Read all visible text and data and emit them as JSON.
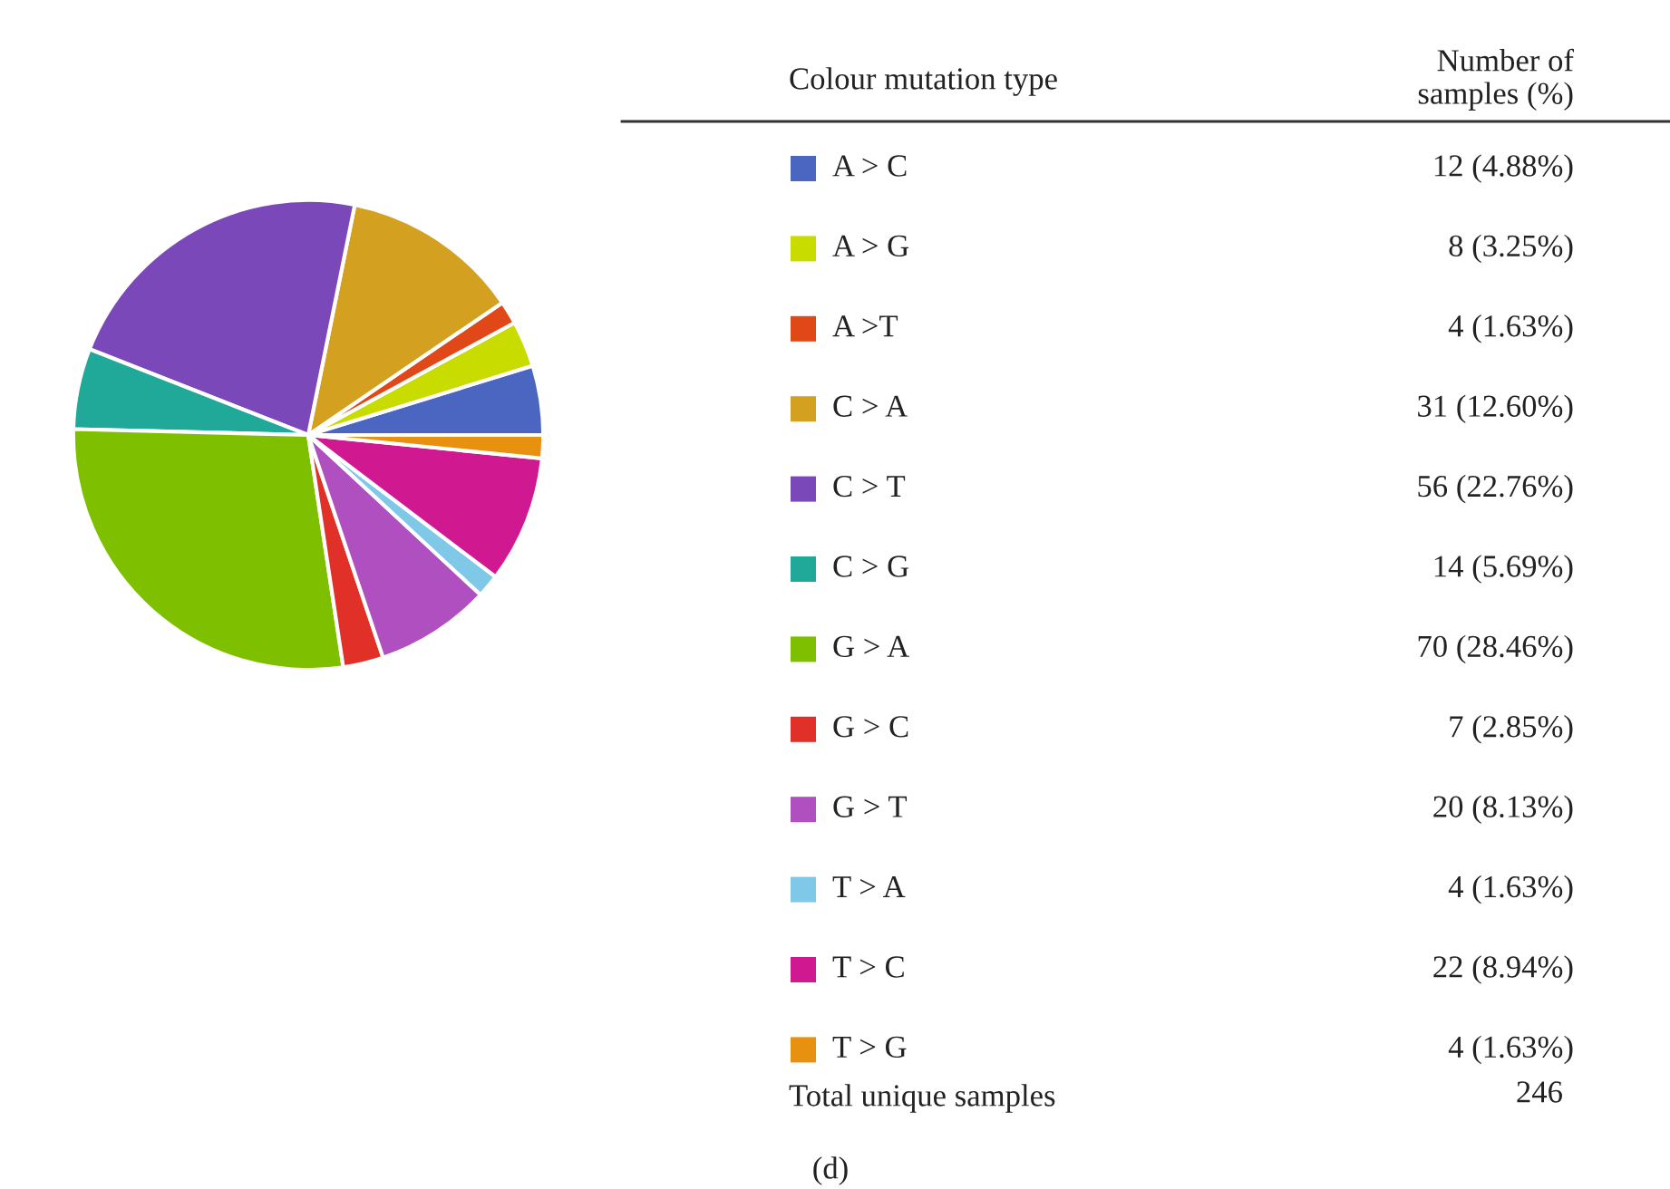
{
  "chart_data": {
    "type": "pie",
    "categories": [
      "A > C",
      "A > G",
      "A >T",
      "C > A",
      "C > T",
      "C > G",
      "G > A",
      "G > C",
      "G > T",
      "T > A",
      "T > C",
      "T > G"
    ],
    "values": [
      12,
      8,
      4,
      31,
      56,
      14,
      70,
      7,
      20,
      4,
      22,
      4
    ],
    "value_labels": [
      "12 (4.88%)",
      "8 (3.25%)",
      "4 (1.63%)",
      "31 (12.60%)",
      "56 (22.76%)",
      "14 (5.69%)",
      "70 (28.46%)",
      "7 (2.85%)",
      "20 (8.13%)",
      "4 (1.63%)",
      "22 (8.94%)",
      "4 (1.63%)"
    ],
    "colors": [
      "#4a66c0",
      "#c8dc00",
      "#e04818",
      "#d4a020",
      "#7a48b8",
      "#20a898",
      "#7ec000",
      "#e03028",
      "#b050c0",
      "#80c8e8",
      "#d01890",
      "#e89010"
    ],
    "legend": "right",
    "legend_title": "Colour mutation type",
    "annotations": [
      "Number of\nsamples (%)",
      "Total unique samples",
      "246",
      "(d)"
    ]
  }
}
